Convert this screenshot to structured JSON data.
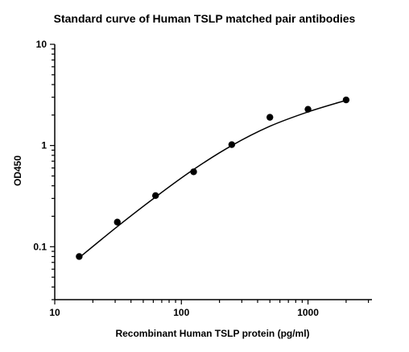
{
  "chart_data": {
    "type": "scatter",
    "title": "Standard curve of Human TSLP matched pair antibodies",
    "xlabel": "Recombinant Human TSLP protein (pg/ml)",
    "ylabel": "OD450",
    "x_scale": "log",
    "y_scale": "log",
    "xlim": [
      10,
      3200
    ],
    "ylim": [
      0.03,
      10
    ],
    "x_ticks": [
      {
        "value": 10,
        "label": "10"
      },
      {
        "value": 100,
        "label": "100"
      },
      {
        "value": 1000,
        "label": "1000"
      }
    ],
    "y_ticks": [
      {
        "value": 0.1,
        "label": "0.1"
      },
      {
        "value": 1,
        "label": "1"
      },
      {
        "value": 10,
        "label": "10"
      }
    ],
    "grid": false,
    "series": [
      {
        "points": [
          {
            "x": 15.6,
            "y": 0.08
          },
          {
            "x": 31.2,
            "y": 0.175
          },
          {
            "x": 62.5,
            "y": 0.32
          },
          {
            "x": 125,
            "y": 0.55
          },
          {
            "x": 250,
            "y": 1.02
          },
          {
            "x": 500,
            "y": 1.9
          },
          {
            "x": 1000,
            "y": 2.28
          },
          {
            "x": 2000,
            "y": 2.82
          }
        ]
      }
    ],
    "fit_curve": [
      {
        "x": 15.6,
        "y": 0.078
      },
      {
        "x": 31.2,
        "y": 0.158
      },
      {
        "x": 62.5,
        "y": 0.31
      },
      {
        "x": 125,
        "y": 0.58
      },
      {
        "x": 250,
        "y": 1.0
      },
      {
        "x": 500,
        "y": 1.55
      },
      {
        "x": 1000,
        "y": 2.15
      },
      {
        "x": 2000,
        "y": 2.8
      }
    ]
  }
}
